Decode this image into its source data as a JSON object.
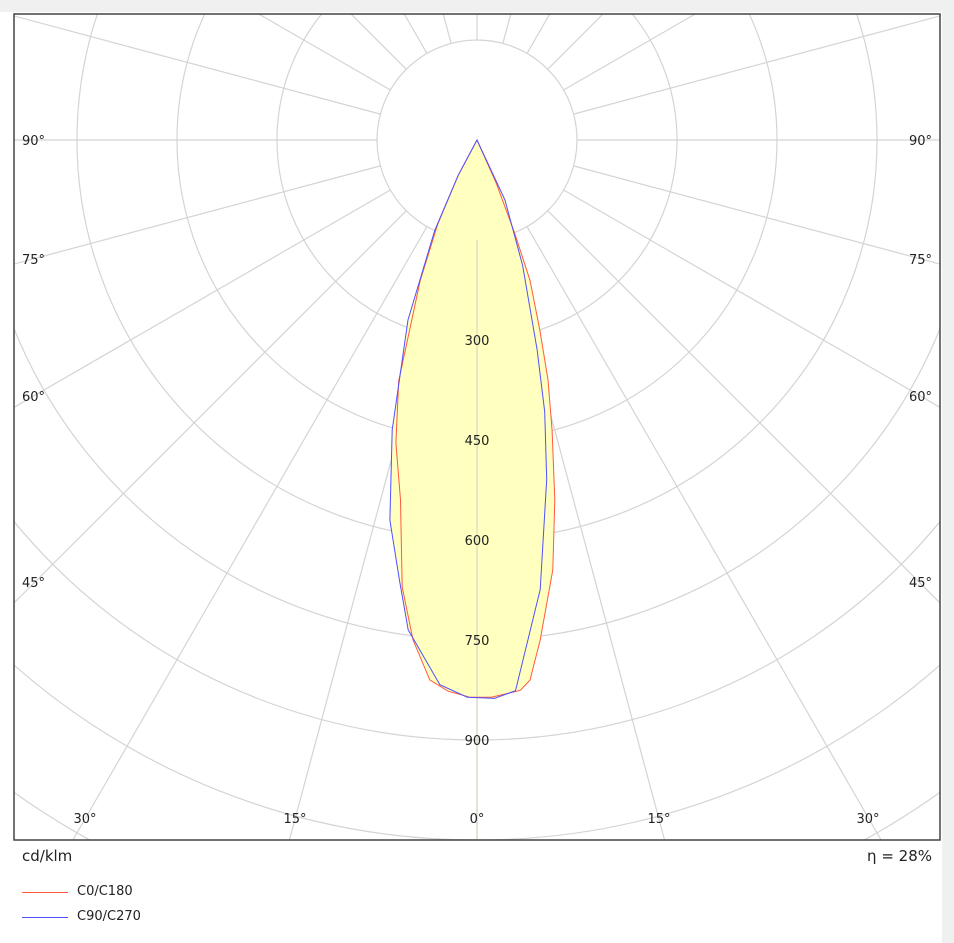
{
  "chart_data": {
    "type": "polar",
    "unit": "cd/klm",
    "efficiency": "η = 28%",
    "radial_ticks": [
      300,
      450,
      600,
      750,
      900
    ],
    "radial_max": 1500,
    "radial_step": 150,
    "angle_labels_side": [
      "90°",
      "75°",
      "60°",
      "45°"
    ],
    "angle_labels_bottom": [
      "30°",
      "15°",
      "0°",
      "15°",
      "30°"
    ],
    "grid": true,
    "fill_color": "#ffffc0",
    "series": [
      {
        "name": "C0/C180",
        "color": "#ff5a3c",
        "points": [
          [
            -30,
            0
          ],
          [
            -28,
            60
          ],
          [
            -25,
            140
          ],
          [
            -22,
            227
          ],
          [
            -18,
            380
          ],
          [
            -15,
            470
          ],
          [
            -12,
            552
          ],
          [
            -9.5,
            680
          ],
          [
            -7.3,
            756
          ],
          [
            -5,
            813
          ],
          [
            -3,
            828
          ],
          [
            -0.7,
            836
          ],
          [
            1.5,
            836
          ],
          [
            3,
            832
          ],
          [
            4.5,
            828
          ],
          [
            5.6,
            814
          ],
          [
            7.2,
            756
          ],
          [
            10,
            655
          ],
          [
            12.2,
            552
          ],
          [
            14.5,
            450
          ],
          [
            16.5,
            375
          ],
          [
            18.3,
            300
          ],
          [
            20.7,
            225
          ],
          [
            22,
            150
          ],
          [
            24,
            70
          ],
          [
            26,
            0
          ]
        ]
      },
      {
        "name": "C90/C270",
        "color": "#5050ff",
        "points": [
          [
            -30,
            0
          ],
          [
            -28,
            60
          ],
          [
            -25,
            150
          ],
          [
            -21,
            289
          ],
          [
            -16.3,
            453
          ],
          [
            -12.9,
            585
          ],
          [
            -10,
            670
          ],
          [
            -8,
            742
          ],
          [
            -3.9,
            819
          ],
          [
            -1,
            836
          ],
          [
            1.8,
            838
          ],
          [
            4,
            828
          ],
          [
            8,
            681
          ],
          [
            11.6,
            520
          ],
          [
            14,
            420
          ],
          [
            16,
            327
          ],
          [
            20,
            200
          ],
          [
            25,
            99
          ],
          [
            28,
            0
          ]
        ]
      }
    ]
  },
  "legend": [
    {
      "label": "C0/C180",
      "color": "#ff5a3c"
    },
    {
      "label": "C90/C270",
      "color": "#5050ff"
    }
  ]
}
